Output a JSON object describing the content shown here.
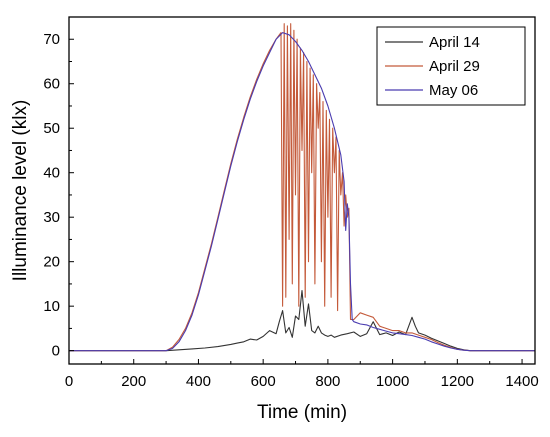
{
  "chart_data": {
    "type": "line",
    "xlabel": "Time (min)",
    "ylabel": "Illuminance level (klx)",
    "xlim": [
      0,
      1440
    ],
    "ylim": [
      -3,
      75
    ],
    "xticks": [
      0,
      200,
      400,
      600,
      800,
      1000,
      1200,
      1400
    ],
    "yticks": [
      0,
      10,
      20,
      30,
      40,
      50,
      60,
      70
    ],
    "grid": false,
    "legend_position": "top-right",
    "series": [
      {
        "name": "April 14",
        "color": "#333333",
        "x": [
          0,
          300,
          340,
          380,
          420,
          460,
          500,
          520,
          540,
          560,
          580,
          600,
          620,
          640,
          650,
          660,
          670,
          680,
          690,
          700,
          710,
          720,
          730,
          740,
          750,
          760,
          770,
          780,
          790,
          800,
          810,
          820,
          840,
          860,
          880,
          900,
          920,
          940,
          960,
          980,
          1000,
          1020,
          1040,
          1060,
          1070,
          1080,
          1100,
          1120,
          1140,
          1160,
          1180,
          1200,
          1220,
          1240,
          1260,
          1440
        ],
        "y": [
          0,
          0,
          0.2,
          0.4,
          0.6,
          0.9,
          1.4,
          1.7,
          2.0,
          2.6,
          2.4,
          3.2,
          4.5,
          3.8,
          6.5,
          9.0,
          4.0,
          5.2,
          3.0,
          7.8,
          7.0,
          13.5,
          5.5,
          10.5,
          4.5,
          4.0,
          5.5,
          4.0,
          3.5,
          3.2,
          3.5,
          3.0,
          3.5,
          3.8,
          4.2,
          3.2,
          3.8,
          6.5,
          3.6,
          4.0,
          3.4,
          4.2,
          3.6,
          7.5,
          5.5,
          4.0,
          3.5,
          2.8,
          2.2,
          1.6,
          1.0,
          0.5,
          0.2,
          0,
          0,
          0
        ]
      },
      {
        "name": "April 29",
        "color": "#c45a3a",
        "x": [
          0,
          300,
          320,
          340,
          360,
          380,
          400,
          420,
          440,
          460,
          480,
          500,
          520,
          540,
          560,
          580,
          600,
          620,
          640,
          655,
          660,
          665,
          670,
          675,
          680,
          685,
          690,
          695,
          700,
          705,
          710,
          715,
          720,
          725,
          730,
          735,
          740,
          745,
          750,
          755,
          760,
          765,
          770,
          775,
          780,
          785,
          790,
          795,
          800,
          805,
          810,
          815,
          820,
          825,
          830,
          835,
          840,
          845,
          850,
          855,
          860,
          865,
          870,
          880,
          900,
          920,
          940,
          960,
          980,
          1000,
          1020,
          1040,
          1060,
          1080,
          1100,
          1120,
          1140,
          1160,
          1180,
          1200,
          1220,
          1240,
          1260,
          1440
        ],
        "y": [
          0,
          0,
          0.8,
          2.5,
          5.0,
          8.5,
          13.0,
          18.5,
          24.0,
          30.0,
          36.0,
          42.0,
          47.5,
          52.5,
          57.0,
          61.0,
          64.5,
          67.5,
          70.0,
          71.5,
          10.0,
          73.5,
          12.0,
          73.0,
          25.0,
          73.5,
          15.0,
          72.0,
          35.0,
          70.0,
          10.0,
          68.0,
          45.0,
          67.0,
          12.0,
          65.0,
          20.0,
          63.5,
          40.0,
          62.0,
          15.0,
          60.0,
          50.0,
          58.0,
          20.0,
          56.0,
          10.0,
          54.0,
          30.0,
          52.0,
          12.0,
          50.0,
          40.0,
          48.0,
          9.0,
          45.0,
          35.0,
          40.0,
          28.0,
          35.0,
          30.0,
          32.0,
          7.0,
          7.0,
          8.5,
          8.0,
          7.5,
          5.5,
          5.0,
          4.5,
          4.5,
          4.0,
          4.0,
          3.5,
          3.0,
          2.5,
          1.8,
          1.2,
          0.7,
          0.3,
          0.1,
          0,
          0,
          0
        ]
      },
      {
        "name": "May 06",
        "color": "#4a3cb0",
        "x": [
          0,
          300,
          320,
          340,
          360,
          380,
          400,
          420,
          440,
          460,
          480,
          500,
          520,
          540,
          560,
          580,
          600,
          620,
          640,
          660,
          680,
          700,
          720,
          740,
          760,
          780,
          800,
          820,
          840,
          850,
          855,
          860,
          865,
          870,
          875,
          880,
          900,
          920,
          940,
          960,
          980,
          1000,
          1020,
          1040,
          1060,
          1080,
          1100,
          1120,
          1140,
          1160,
          1180,
          1200,
          1220,
          1240,
          1260,
          1440
        ],
        "y": [
          0,
          0,
          0.5,
          2.0,
          4.5,
          8.0,
          12.5,
          18.0,
          23.5,
          29.5,
          35.5,
          41.5,
          47.0,
          52.0,
          56.5,
          60.5,
          64.0,
          67.0,
          70.0,
          71.5,
          71.0,
          69.5,
          67.5,
          65.0,
          62.0,
          59.0,
          55.0,
          50.0,
          44.0,
          38.0,
          27.0,
          33.0,
          30.0,
          15.0,
          7.0,
          6.5,
          6.0,
          5.8,
          5.2,
          4.8,
          4.4,
          4.0,
          3.8,
          3.6,
          3.4,
          3.0,
          2.6,
          2.0,
          1.5,
          1.0,
          0.6,
          0.3,
          0.1,
          0,
          0,
          0
        ]
      }
    ]
  }
}
